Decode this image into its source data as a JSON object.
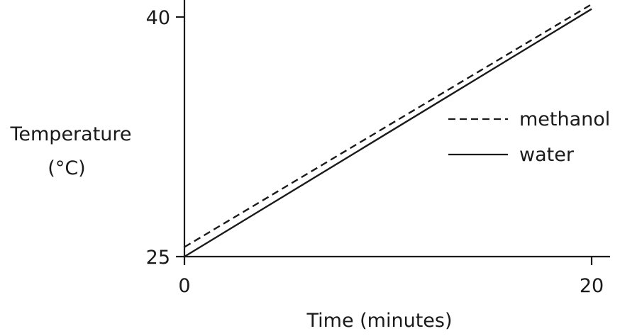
{
  "chart_data": {
    "type": "line",
    "title": "",
    "xlabel": "Time (minutes)",
    "ylabel": "Temperature",
    "ylabel_unit": "(°C)",
    "xlim": [
      0,
      20
    ],
    "ylim": [
      25,
      40
    ],
    "xticks": [
      "0",
      "20"
    ],
    "yticks": [
      "25",
      "40"
    ],
    "grid": false,
    "legend_position": "right",
    "series": [
      {
        "name": "methanol",
        "style": "dashed",
        "color": "#1a1a1a",
        "x": [
          0,
          20
        ],
        "y": [
          25.6,
          40.8
        ]
      },
      {
        "name": "water",
        "style": "solid",
        "color": "#1a1a1a",
        "x": [
          0,
          20
        ],
        "y": [
          25.0,
          40.5
        ]
      }
    ]
  }
}
